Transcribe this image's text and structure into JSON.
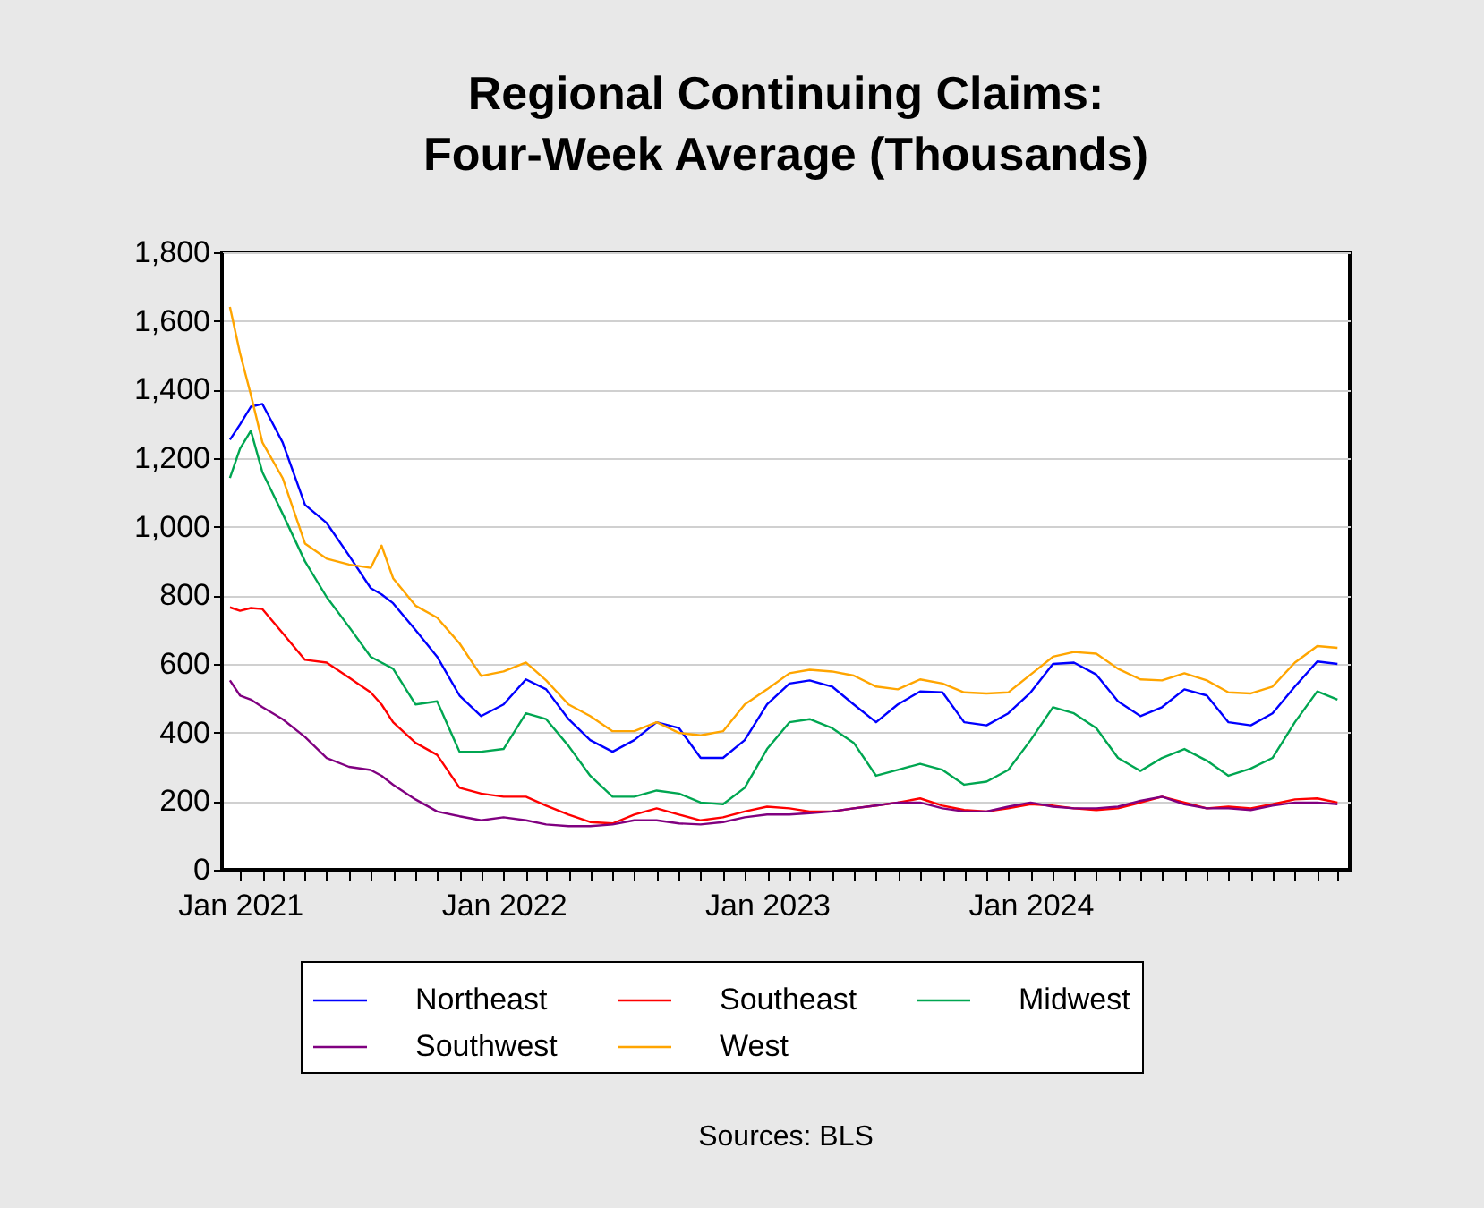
{
  "chart_data": {
    "type": "line",
    "title": "Regional Continuing Claims:\nFour-Week Average (Thousands)",
    "annotations": [
      "Sources: BLS"
    ],
    "x": [
      "2020-12-18",
      "2021-01-01",
      "2021-01-16",
      "2021-02-01",
      "2021-03-01",
      "2021-04-01",
      "2021-05-01",
      "2021-06-01",
      "2021-07-01",
      "2021-07-16",
      "2021-08-01",
      "2021-09-01",
      "2021-10-01",
      "2021-11-01",
      "2021-12-01",
      "2022-01-01",
      "2022-02-01",
      "2022-03-01",
      "2022-04-01",
      "2022-05-01",
      "2022-06-01",
      "2022-07-01",
      "2022-08-01",
      "2022-09-01",
      "2022-10-01",
      "2022-11-01",
      "2022-12-01",
      "2023-01-01",
      "2023-02-01",
      "2023-03-01",
      "2023-04-01",
      "2023-05-01",
      "2023-06-01",
      "2023-07-01",
      "2023-08-01",
      "2023-09-01",
      "2023-10-01",
      "2023-11-01",
      "2023-12-01",
      "2024-01-01",
      "2024-02-01",
      "2024-03-01",
      "2024-04-01",
      "2024-05-01",
      "2024-06-01",
      "2024-07-01",
      "2024-08-01",
      "2024-09-01",
      "2024-10-01",
      "2024-11-01",
      "2024-12-01",
      "2025-01-01",
      "2025-02-01",
      "2025-03-01"
    ],
    "series": [
      {
        "name": "Northeast",
        "color": "#0000ff",
        "values": [
          1254,
          1298,
          1350,
          1358,
          1246,
          1064,
          1011,
          916,
          821,
          803,
          777,
          699,
          621,
          508,
          448,
          482,
          555,
          526,
          439,
          378,
          344,
          378,
          430,
          413,
          326,
          326,
          378,
          482,
          543,
          552,
          534,
          482,
          430,
          482,
          520,
          517,
          430,
          421,
          456,
          517,
          600,
          604,
          569,
          491,
          448,
          474,
          526,
          508,
          430,
          421,
          456,
          534,
          607,
          600
        ]
      },
      {
        "name": "Southeast",
        "color": "#ff0000",
        "values": [
          765,
          755,
          763,
          760,
          690,
          612,
          604,
          560,
          517,
          482,
          430,
          370,
          335,
          239,
          222,
          213,
          213,
          187,
          161,
          139,
          135,
          161,
          179,
          161,
          144,
          153,
          170,
          184,
          179,
          170,
          170,
          179,
          187,
          196,
          208,
          187,
          174,
          170,
          179,
          191,
          187,
          179,
          174,
          179,
          196,
          213,
          196,
          179,
          184,
          179,
          191,
          205,
          208,
          196
        ]
      },
      {
        "name": "Midwest",
        "color": "#00a651",
        "values": [
          1142,
          1228,
          1280,
          1159,
          1038,
          899,
          795,
          708,
          621,
          604,
          586,
          482,
          491,
          344,
          344,
          352,
          456,
          439,
          361,
          274,
          213,
          213,
          231,
          222,
          196,
          191,
          239,
          352,
          430,
          439,
          413,
          370,
          274,
          291,
          309,
          291,
          248,
          257,
          291,
          378,
          474,
          456,
          413,
          326,
          288,
          326,
          352,
          318,
          274,
          295,
          326,
          430,
          520,
          496
        ]
      },
      {
        "name": "Southwest",
        "color": "#800080",
        "values": [
          552,
          508,
          496,
          474,
          439,
          387,
          326,
          300,
          291,
          274,
          248,
          205,
          170,
          156,
          144,
          153,
          144,
          132,
          127,
          127,
          132,
          144,
          144,
          135,
          132,
          139,
          153,
          161,
          161,
          165,
          170,
          179,
          187,
          196,
          196,
          179,
          170,
          170,
          184,
          196,
          184,
          179,
          179,
          184,
          201,
          213,
          191,
          179,
          179,
          174,
          187,
          196,
          196,
          191
        ]
      },
      {
        "name": "West",
        "color": "#ffa500",
        "values": [
          1641,
          1506,
          1385,
          1246,
          1142,
          951,
          907,
          890,
          880,
          945,
          850,
          770,
          735,
          660,
          565,
          578,
          604,
          552,
          482,
          448,
          404,
          404,
          430,
          399,
          392,
          404,
          482,
          526,
          573,
          583,
          578,
          566,
          534,
          526,
          555,
          543,
          517,
          514,
          517,
          569,
          621,
          635,
          630,
          586,
          555,
          552,
          573,
          552,
          517,
          514,
          534,
          604,
          652,
          647
        ]
      }
    ],
    "xlim": [
      "2020-12-07",
      "2025-03-18"
    ],
    "xticks": [
      {
        "value": "2021-01-01",
        "label": "Jan 2021"
      },
      {
        "value": "2021-02-01",
        "label": null
      },
      {
        "value": "2021-03-01",
        "label": null
      },
      {
        "value": "2021-04-01",
        "label": null
      },
      {
        "value": "2021-05-01",
        "label": null
      },
      {
        "value": "2021-06-01",
        "label": null
      },
      {
        "value": "2021-07-01",
        "label": null
      },
      {
        "value": "2021-08-01",
        "label": null
      },
      {
        "value": "2021-09-01",
        "label": null
      },
      {
        "value": "2021-10-01",
        "label": null
      },
      {
        "value": "2021-11-01",
        "label": null
      },
      {
        "value": "2021-12-01",
        "label": null
      },
      {
        "value": "2022-01-01",
        "label": "Jan 2022"
      },
      {
        "value": "2022-02-01",
        "label": null
      },
      {
        "value": "2022-03-01",
        "label": null
      },
      {
        "value": "2022-04-01",
        "label": null
      },
      {
        "value": "2022-05-01",
        "label": null
      },
      {
        "value": "2022-06-01",
        "label": null
      },
      {
        "value": "2022-07-01",
        "label": null
      },
      {
        "value": "2022-08-01",
        "label": null
      },
      {
        "value": "2022-09-01",
        "label": null
      },
      {
        "value": "2022-10-01",
        "label": null
      },
      {
        "value": "2022-11-01",
        "label": null
      },
      {
        "value": "2022-12-01",
        "label": null
      },
      {
        "value": "2023-01-01",
        "label": "Jan 2023"
      },
      {
        "value": "2023-02-01",
        "label": null
      },
      {
        "value": "2023-03-01",
        "label": null
      },
      {
        "value": "2023-04-01",
        "label": null
      },
      {
        "value": "2023-05-01",
        "label": null
      },
      {
        "value": "2023-06-01",
        "label": null
      },
      {
        "value": "2023-07-01",
        "label": null
      },
      {
        "value": "2023-08-01",
        "label": null
      },
      {
        "value": "2023-09-01",
        "label": null
      },
      {
        "value": "2023-10-01",
        "label": null
      },
      {
        "value": "2023-11-01",
        "label": null
      },
      {
        "value": "2023-12-01",
        "label": null
      },
      {
        "value": "2024-01-01",
        "label": "Jan 2024"
      },
      {
        "value": "2024-02-01",
        "label": null
      },
      {
        "value": "2024-03-01",
        "label": null
      },
      {
        "value": "2024-04-01",
        "label": null
      },
      {
        "value": "2024-05-01",
        "label": null
      },
      {
        "value": "2024-06-01",
        "label": null
      },
      {
        "value": "2024-07-01",
        "label": null
      },
      {
        "value": "2024-08-01",
        "label": null
      },
      {
        "value": "2024-09-01",
        "label": null
      },
      {
        "value": "2024-10-01",
        "label": null
      },
      {
        "value": "2024-11-01",
        "label": null
      },
      {
        "value": "2024-12-01",
        "label": null
      },
      {
        "value": "2025-01-01",
        "label": null
      },
      {
        "value": "2025-02-01",
        "label": null
      },
      {
        "value": "2025-03-01",
        "label": null
      }
    ],
    "ylim": [
      0,
      1800
    ],
    "yticks": [
      {
        "value": 0,
        "label": "0"
      },
      {
        "value": 200,
        "label": "200"
      },
      {
        "value": 400,
        "label": "400"
      },
      {
        "value": 600,
        "label": "600"
      },
      {
        "value": 800,
        "label": "800"
      },
      {
        "value": 1000,
        "label": "1,000"
      },
      {
        "value": 1200,
        "label": "1,200"
      },
      {
        "value": 1400,
        "label": "1,400"
      },
      {
        "value": 1600,
        "label": "1,600"
      },
      {
        "value": 1800,
        "label": "1,800"
      }
    ],
    "grid": "y",
    "legend": "bottom",
    "line_style": "solid"
  }
}
